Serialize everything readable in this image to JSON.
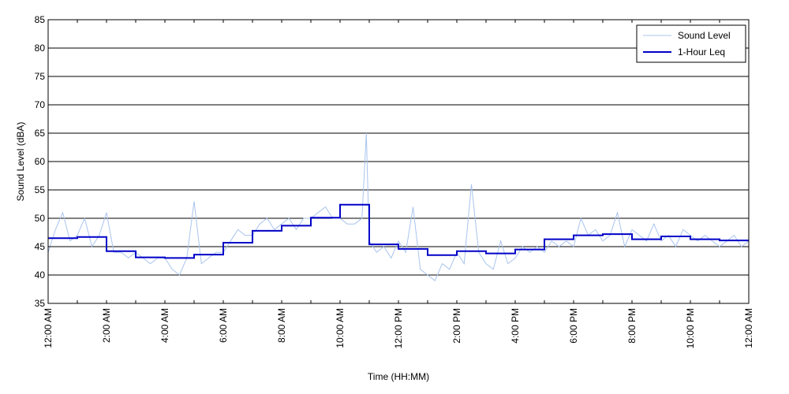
{
  "chart_data": {
    "type": "line",
    "xlabel": "Time (HH:MM)",
    "ylabel": "Sound Level (dBA)",
    "xlim": [
      0,
      24
    ],
    "ylim": [
      35,
      85
    ],
    "y_ticks": [
      35,
      40,
      45,
      50,
      55,
      60,
      65,
      70,
      75,
      80,
      85
    ],
    "x_ticks": [
      0,
      1,
      2,
      3,
      4,
      5,
      6,
      7,
      8,
      9,
      10,
      11,
      12,
      13,
      14,
      15,
      16,
      17,
      18,
      19,
      20,
      21,
      22,
      23,
      24
    ],
    "x_tick_labels": [
      {
        "hour": 0,
        "label": "12:00 AM"
      },
      {
        "hour": 2,
        "label": "2:00 AM"
      },
      {
        "hour": 4,
        "label": "4:00 AM"
      },
      {
        "hour": 6,
        "label": "6:00 AM"
      },
      {
        "hour": 8,
        "label": "8:00 AM"
      },
      {
        "hour": 10,
        "label": "10:00 AM"
      },
      {
        "hour": 12,
        "label": "12:00 PM"
      },
      {
        "hour": 14,
        "label": "2:00 PM"
      },
      {
        "hour": 16,
        "label": "4:00 PM"
      },
      {
        "hour": 18,
        "label": "6:00 PM"
      },
      {
        "hour": 20,
        "label": "8:00 PM"
      },
      {
        "hour": 22,
        "label": "10:00 PM"
      },
      {
        "hour": 24,
        "label": "12:00 AM"
      }
    ],
    "grid": "horizontal",
    "legend_position": "top-right",
    "series": [
      {
        "name": "Sound Level",
        "color": "#a9c4ee",
        "style": "thin-line",
        "x": [
          0,
          0.25,
          0.5,
          0.75,
          1,
          1.25,
          1.5,
          1.75,
          2,
          2.25,
          2.5,
          2.75,
          3,
          3.25,
          3.5,
          3.75,
          4,
          4.25,
          4.5,
          4.75,
          5,
          5.25,
          5.5,
          5.75,
          6,
          6.25,
          6.5,
          6.75,
          7,
          7.25,
          7.5,
          7.75,
          8,
          8.25,
          8.5,
          8.75,
          9,
          9.25,
          9.5,
          9.75,
          10,
          10.25,
          10.5,
          10.75,
          10.9,
          11,
          11.25,
          11.5,
          11.75,
          12,
          12.25,
          12.5,
          12.75,
          13,
          13.25,
          13.5,
          13.75,
          14,
          14.25,
          14.5,
          14.75,
          15,
          15.25,
          15.5,
          15.75,
          16,
          16.25,
          16.5,
          16.75,
          17,
          17.25,
          17.5,
          17.75,
          18,
          18.25,
          18.5,
          18.75,
          19,
          19.25,
          19.5,
          19.75,
          20,
          20.25,
          20.5,
          20.75,
          21,
          21.25,
          21.5,
          21.75,
          22,
          22.25,
          22.5,
          22.75,
          23,
          23.25,
          23.5,
          23.75,
          24
        ],
        "values": [
          44,
          48,
          51,
          46,
          47,
          50,
          45,
          47,
          51,
          44,
          44,
          43,
          44,
          43,
          42,
          43,
          43,
          41,
          40,
          43,
          53,
          42,
          43,
          44,
          44,
          46,
          48,
          47,
          47,
          49,
          50,
          48,
          49,
          50,
          48,
          50,
          50,
          51,
          52,
          50,
          50,
          49,
          49,
          50,
          65,
          46,
          44,
          45,
          43,
          46,
          44,
          52,
          41,
          40,
          39,
          42,
          41,
          44,
          42,
          56,
          44,
          42,
          41,
          46,
          42,
          43,
          45,
          44,
          45,
          44,
          46,
          45,
          46,
          45,
          50,
          47,
          48,
          46,
          47,
          51,
          45,
          48,
          47,
          46,
          49,
          46,
          47,
          45,
          48,
          47,
          46,
          47,
          46,
          45,
          46,
          47,
          45,
          46
        ]
      },
      {
        "name": "1-Hour Leq",
        "color": "#0000c8",
        "style": "step",
        "x": [
          0,
          1,
          2,
          3,
          4,
          5,
          6,
          7,
          8,
          9,
          10,
          11,
          12,
          13,
          14,
          15,
          16,
          17,
          18,
          19,
          20,
          21,
          22,
          23
        ],
        "values": [
          46.5,
          46.7,
          44.2,
          43.1,
          43.0,
          43.6,
          45.7,
          47.8,
          48.7,
          50.1,
          52.4,
          45.4,
          44.6,
          43.5,
          44.2,
          43.8,
          44.5,
          46.3,
          47.0,
          47.2,
          46.3,
          46.8,
          46.3,
          46.1
        ]
      }
    ]
  }
}
